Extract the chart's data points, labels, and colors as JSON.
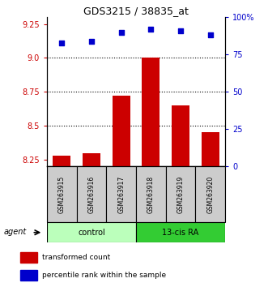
{
  "title": "GDS3215 / 38835_at",
  "samples": [
    "GSM263915",
    "GSM263916",
    "GSM263917",
    "GSM263918",
    "GSM263919",
    "GSM263920"
  ],
  "bar_values": [
    8.28,
    8.3,
    8.72,
    9.0,
    8.65,
    8.45
  ],
  "percentile_values": [
    83,
    84,
    90,
    92,
    91,
    88
  ],
  "ylim_left": [
    8.2,
    9.3
  ],
  "ylim_right": [
    0,
    100
  ],
  "yticks_left": [
    8.25,
    8.5,
    8.75,
    9.0,
    9.25
  ],
  "yticks_right": [
    0,
    25,
    50,
    75,
    100
  ],
  "ytick_labels_right": [
    "0",
    "25",
    "50",
    "75",
    "100%"
  ],
  "bar_color": "#cc0000",
  "dot_color": "#0000cc",
  "bar_width": 0.6,
  "groups": [
    {
      "label": "control",
      "samples": [
        0,
        1,
        2
      ],
      "color": "#bbffbb"
    },
    {
      "label": "13-cis RA",
      "samples": [
        3,
        4,
        5
      ],
      "color": "#33cc33"
    }
  ],
  "agent_label": "agent",
  "legend_bar_label": "transformed count",
  "legend_dot_label": "percentile rank within the sample",
  "ticklabel_color_left": "#cc0000",
  "ticklabel_color_right": "#0000cc",
  "sample_box_color": "#cccccc"
}
